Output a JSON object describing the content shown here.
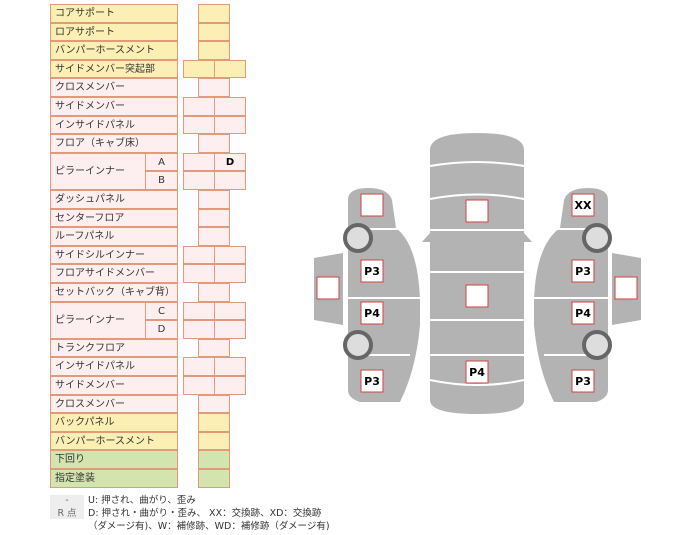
{
  "rows": [
    {
      "label": "コアサポート",
      "type": "single",
      "color": "y",
      "value": ""
    },
    {
      "label": "ロアサポート",
      "type": "single",
      "color": "y",
      "value": ""
    },
    {
      "label": "バンパーホースメント",
      "type": "single",
      "color": "y",
      "value": ""
    },
    {
      "label": "サイドメンバー突起部",
      "type": "double",
      "color": "y",
      "values": [
        "",
        ""
      ]
    },
    {
      "label": "クロスメンバー",
      "type": "single",
      "color": "p",
      "value": ""
    },
    {
      "label": "サイドメンバー",
      "type": "double",
      "color": "p",
      "values": [
        "",
        ""
      ]
    },
    {
      "label": "インサイドパネル",
      "type": "double",
      "color": "p",
      "values": [
        "",
        ""
      ]
    },
    {
      "label": "フロア（キャブ床）",
      "type": "single",
      "color": "p",
      "value": ""
    },
    {
      "label": "ピラーインナー",
      "type": "pillar",
      "color": "p",
      "subs": [
        {
          "label": "A",
          "values": [
            "",
            "D"
          ]
        },
        {
          "label": "B",
          "values": [
            "",
            ""
          ]
        }
      ]
    },
    {
      "label": "ダッシュパネル",
      "type": "single",
      "color": "p",
      "value": ""
    },
    {
      "label": "センターフロア",
      "type": "single",
      "color": "p",
      "value": ""
    },
    {
      "label": "ルーフパネル",
      "type": "single",
      "color": "p",
      "value": ""
    },
    {
      "label": "サイドシルインナー",
      "type": "double",
      "color": "p",
      "values": [
        "",
        ""
      ]
    },
    {
      "label": "フロアサイドメンバー",
      "type": "double",
      "color": "p",
      "values": [
        "",
        ""
      ]
    },
    {
      "label": "セットバック（キャブ背）",
      "type": "single",
      "color": "p",
      "value": ""
    },
    {
      "label": "ピラーインナー",
      "type": "pillar",
      "color": "p",
      "subs": [
        {
          "label": "C",
          "values": [
            "",
            ""
          ]
        },
        {
          "label": "D",
          "values": [
            "",
            ""
          ]
        }
      ]
    },
    {
      "label": "トランクフロア",
      "type": "single",
      "color": "p",
      "value": ""
    },
    {
      "label": "インサイドパネル",
      "type": "double",
      "color": "p",
      "values": [
        "",
        ""
      ]
    },
    {
      "label": "サイドメンバー",
      "type": "double",
      "color": "p",
      "values": [
        "",
        ""
      ]
    },
    {
      "label": "クロスメンバー",
      "type": "single",
      "color": "p",
      "value": ""
    },
    {
      "label": "バックパネル",
      "type": "single",
      "color": "y",
      "value": ""
    },
    {
      "label": "バンパーホースメント",
      "type": "single",
      "color": "y",
      "value": ""
    },
    {
      "label": "下回り",
      "type": "single",
      "color": "g",
      "value": ""
    },
    {
      "label": "指定塗装",
      "type": "single",
      "color": "g",
      "value": ""
    }
  ],
  "legend": [
    {
      "key": "-",
      "text": "U: 押され、曲がり、歪み"
    },
    {
      "key": "R 点",
      "text": "D: 押され・曲がり・歪み、 XX：交換跡、XD：交換跡"
    },
    {
      "key": "",
      "text": "（ダメージ有)、W：補修跡、WD：補修跡（ダメージ有)"
    }
  ],
  "diagram": {
    "left": [
      "",
      "P3",
      "P4",
      "P3",
      ""
    ],
    "center": [
      "",
      "",
      "P4"
    ],
    "right": [
      "XX",
      "P3",
      "P4",
      "P3",
      ""
    ]
  },
  "colors": {
    "body": "#b3b3b3",
    "mark_border": "#d04040",
    "table_border": "#e29a7a"
  }
}
